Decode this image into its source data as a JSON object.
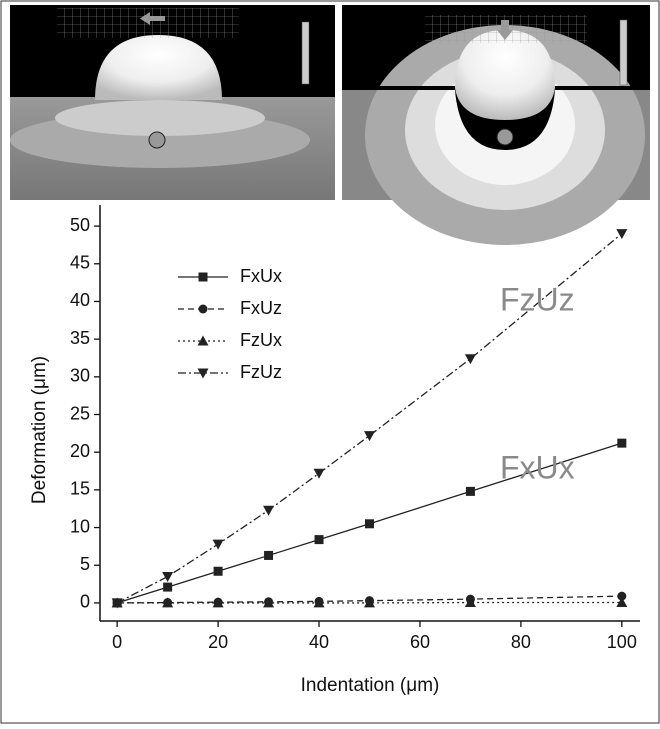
{
  "chart_data": {
    "type": "line",
    "x_label": "Indentation (μm)",
    "y_label": "Deformation (μm)",
    "x": [
      0,
      10,
      20,
      30,
      40,
      50,
      70,
      100
    ],
    "series": [
      {
        "name": "FxUx",
        "color": "#222222",
        "dash": "solid",
        "marker": "square",
        "values": [
          0,
          2.1,
          4.2,
          6.3,
          8.4,
          10.5,
          14.8,
          21.2
        ]
      },
      {
        "name": "FxUz",
        "color": "#222222",
        "dash": "dashed",
        "marker": "circle",
        "values": [
          0,
          0.05,
          0.1,
          0.15,
          0.2,
          0.3,
          0.5,
          0.9
        ]
      },
      {
        "name": "FzUx",
        "color": "#222222",
        "dash": "dotted",
        "marker": "triangle-up",
        "values": [
          0,
          0,
          0,
          0,
          0,
          0,
          0.05,
          0.05
        ]
      },
      {
        "name": "FzUz",
        "color": "#222222",
        "dash": "dashdot",
        "marker": "triangle-down",
        "values": [
          0,
          3.5,
          7.8,
          12.3,
          17.2,
          22.2,
          32.4,
          49.0
        ]
      }
    ],
    "annotations": [
      "FzUz",
      "FxUx"
    ],
    "xlim": [
      -3.4,
      103.6
    ],
    "xticks": [
      0,
      20,
      40,
      60,
      80,
      100
    ],
    "ylim": [
      -2.4,
      52.8
    ],
    "yticks": [
      0,
      5,
      10,
      15,
      20,
      25,
      30,
      35,
      40,
      45,
      50
    ],
    "legend": "upper-left"
  }
}
